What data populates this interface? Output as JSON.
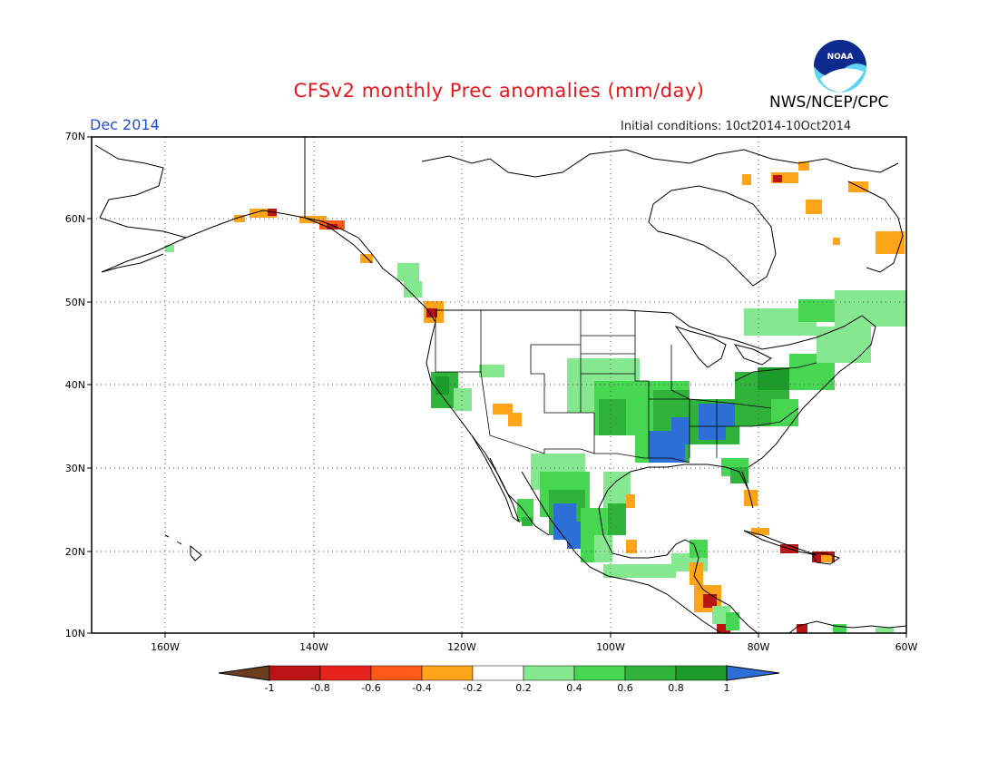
{
  "title": "CFSv2 monthly Prec anomalies (mm/day)",
  "agency": "NWS/NCEP/CPC",
  "logo_text": "NOAA",
  "month": "Dec 2014",
  "initial_conditions": "Initial conditions: 10ct2014-10Oct2014",
  "lat_labels": [
    "70N",
    "60N",
    "50N",
    "40N",
    "30N",
    "20N",
    "10N"
  ],
  "lon_labels": [
    "160W",
    "140W",
    "120W",
    "100W",
    "80W",
    "60W"
  ],
  "colorbar": {
    "levels": [
      "-1",
      "-0.8",
      "-0.6",
      "-0.4",
      "-0.2",
      "0.2",
      "0.4",
      "0.6",
      "0.8",
      "1"
    ],
    "colors": [
      "#6b3d1f",
      "#bb1414",
      "#e8221d",
      "#ff5a17",
      "#ffa319",
      "#ffffff",
      "#86e88e",
      "#46d651",
      "#2fb33b",
      "#1c9a2a",
      "#2d6fd6"
    ]
  },
  "colors": {
    "title": "#e8161b",
    "month": "#1f4fd8",
    "coast": "#000000"
  }
}
